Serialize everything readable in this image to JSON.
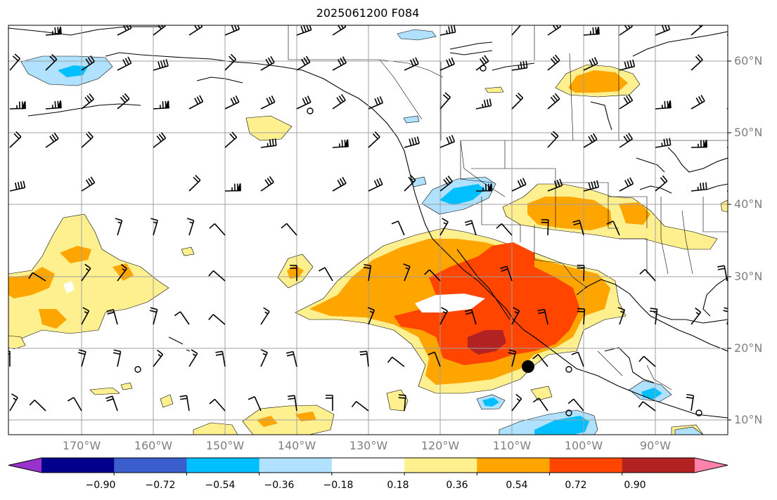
{
  "title": "2025061200 F084",
  "lat_labels": [
    "60°N",
    "50°N",
    "40°N",
    "30°N",
    "20°N",
    "10°N"
  ],
  "lon_labels": [
    "170°W",
    "160°W",
    "150°W",
    "140°W",
    "130°W",
    "120°W",
    "110°W",
    "100°W",
    "90°W"
  ],
  "colorbar": {
    "ticks": [
      "−0.90",
      "−0.72",
      "−0.54",
      "−0.36",
      "−0.18",
      "0.18",
      "0.36",
      "0.54",
      "0.72",
      "0.90"
    ],
    "colors": [
      "#9932cc",
      "#00008b",
      "#3a5fcd",
      "#00bfff",
      "#b0e2ff",
      "#ffffff",
      "#fff08f",
      "#ffa500",
      "#ff4500",
      "#b22222",
      "#ff82ab"
    ]
  }
}
